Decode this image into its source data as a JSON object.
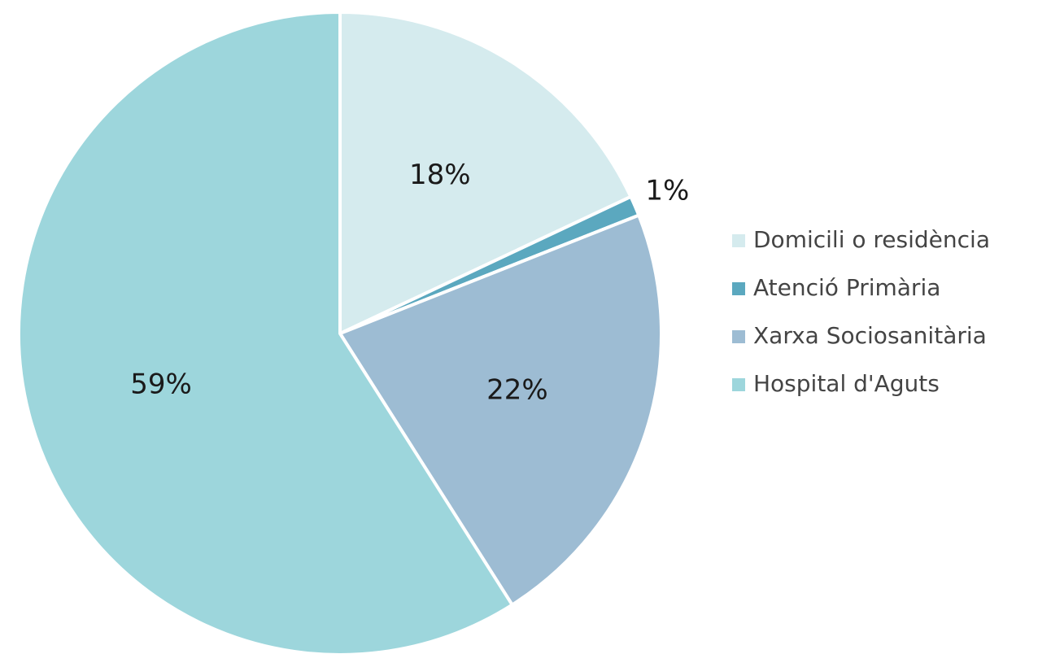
{
  "chart_data": {
    "type": "pie",
    "categories": [
      "Domicili o residència",
      "Atenció Primària",
      "Xarxa Sociosanitària",
      "Hospital d'Aguts"
    ],
    "values": [
      18,
      1,
      22,
      59
    ],
    "value_labels": [
      "18%",
      "1%",
      "22%",
      "59%"
    ],
    "colors": [
      "#d5ebee",
      "#5ba8bf",
      "#9dbcd3",
      "#9dd6dc"
    ],
    "legend": "right"
  }
}
